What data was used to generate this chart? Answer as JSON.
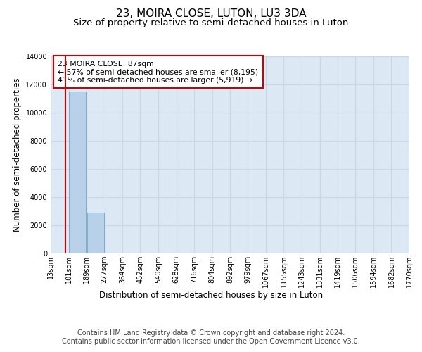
{
  "title": "23, MOIRA CLOSE, LUTON, LU3 3DA",
  "subtitle": "Size of property relative to semi-detached houses in Luton",
  "xlabel": "Distribution of semi-detached houses by size in Luton",
  "ylabel": "Number of semi-detached properties",
  "footer_line1": "Contains HM Land Registry data © Crown copyright and database right 2024.",
  "footer_line2": "Contains public sector information licensed under the Open Government Licence v3.0.",
  "annotation_line1": "23 MOIRA CLOSE: 87sqm",
  "annotation_line2": "← 57% of semi-detached houses are smaller (8,195)",
  "annotation_line3": "41% of semi-detached houses are larger (5,919) →",
  "property_size": 87,
  "bin_edges": [
    13,
    101,
    189,
    277,
    364,
    452,
    540,
    628,
    716,
    804,
    892,
    979,
    1067,
    1155,
    1243,
    1331,
    1419,
    1506,
    1594,
    1682,
    1770
  ],
  "bin_labels": [
    "13sqm",
    "101sqm",
    "189sqm",
    "277sqm",
    "364sqm",
    "452sqm",
    "540sqm",
    "628sqm",
    "716sqm",
    "804sqm",
    "892sqm",
    "979sqm",
    "1067sqm",
    "1155sqm",
    "1243sqm",
    "1331sqm",
    "1419sqm",
    "1506sqm",
    "1594sqm",
    "1682sqm",
    "1770sqm"
  ],
  "bar_heights": [
    0,
    11500,
    2900,
    0,
    0,
    0,
    0,
    0,
    0,
    0,
    0,
    0,
    0,
    0,
    0,
    0,
    0,
    0,
    0,
    0
  ],
  "bar_color": "#b8d0e8",
  "bar_edge_color": "#7aadd0",
  "ylim": [
    0,
    14000
  ],
  "yticks": [
    0,
    2000,
    4000,
    6000,
    8000,
    10000,
    12000,
    14000
  ],
  "vline_color": "#cc0000",
  "vline_x": 87,
  "annotation_box_color": "#cc0000",
  "grid_color": "#c8d8e8",
  "bg_color": "#dce8f4",
  "title_fontsize": 11,
  "subtitle_fontsize": 9.5,
  "label_fontsize": 8.5,
  "tick_fontsize": 7,
  "footer_fontsize": 7
}
